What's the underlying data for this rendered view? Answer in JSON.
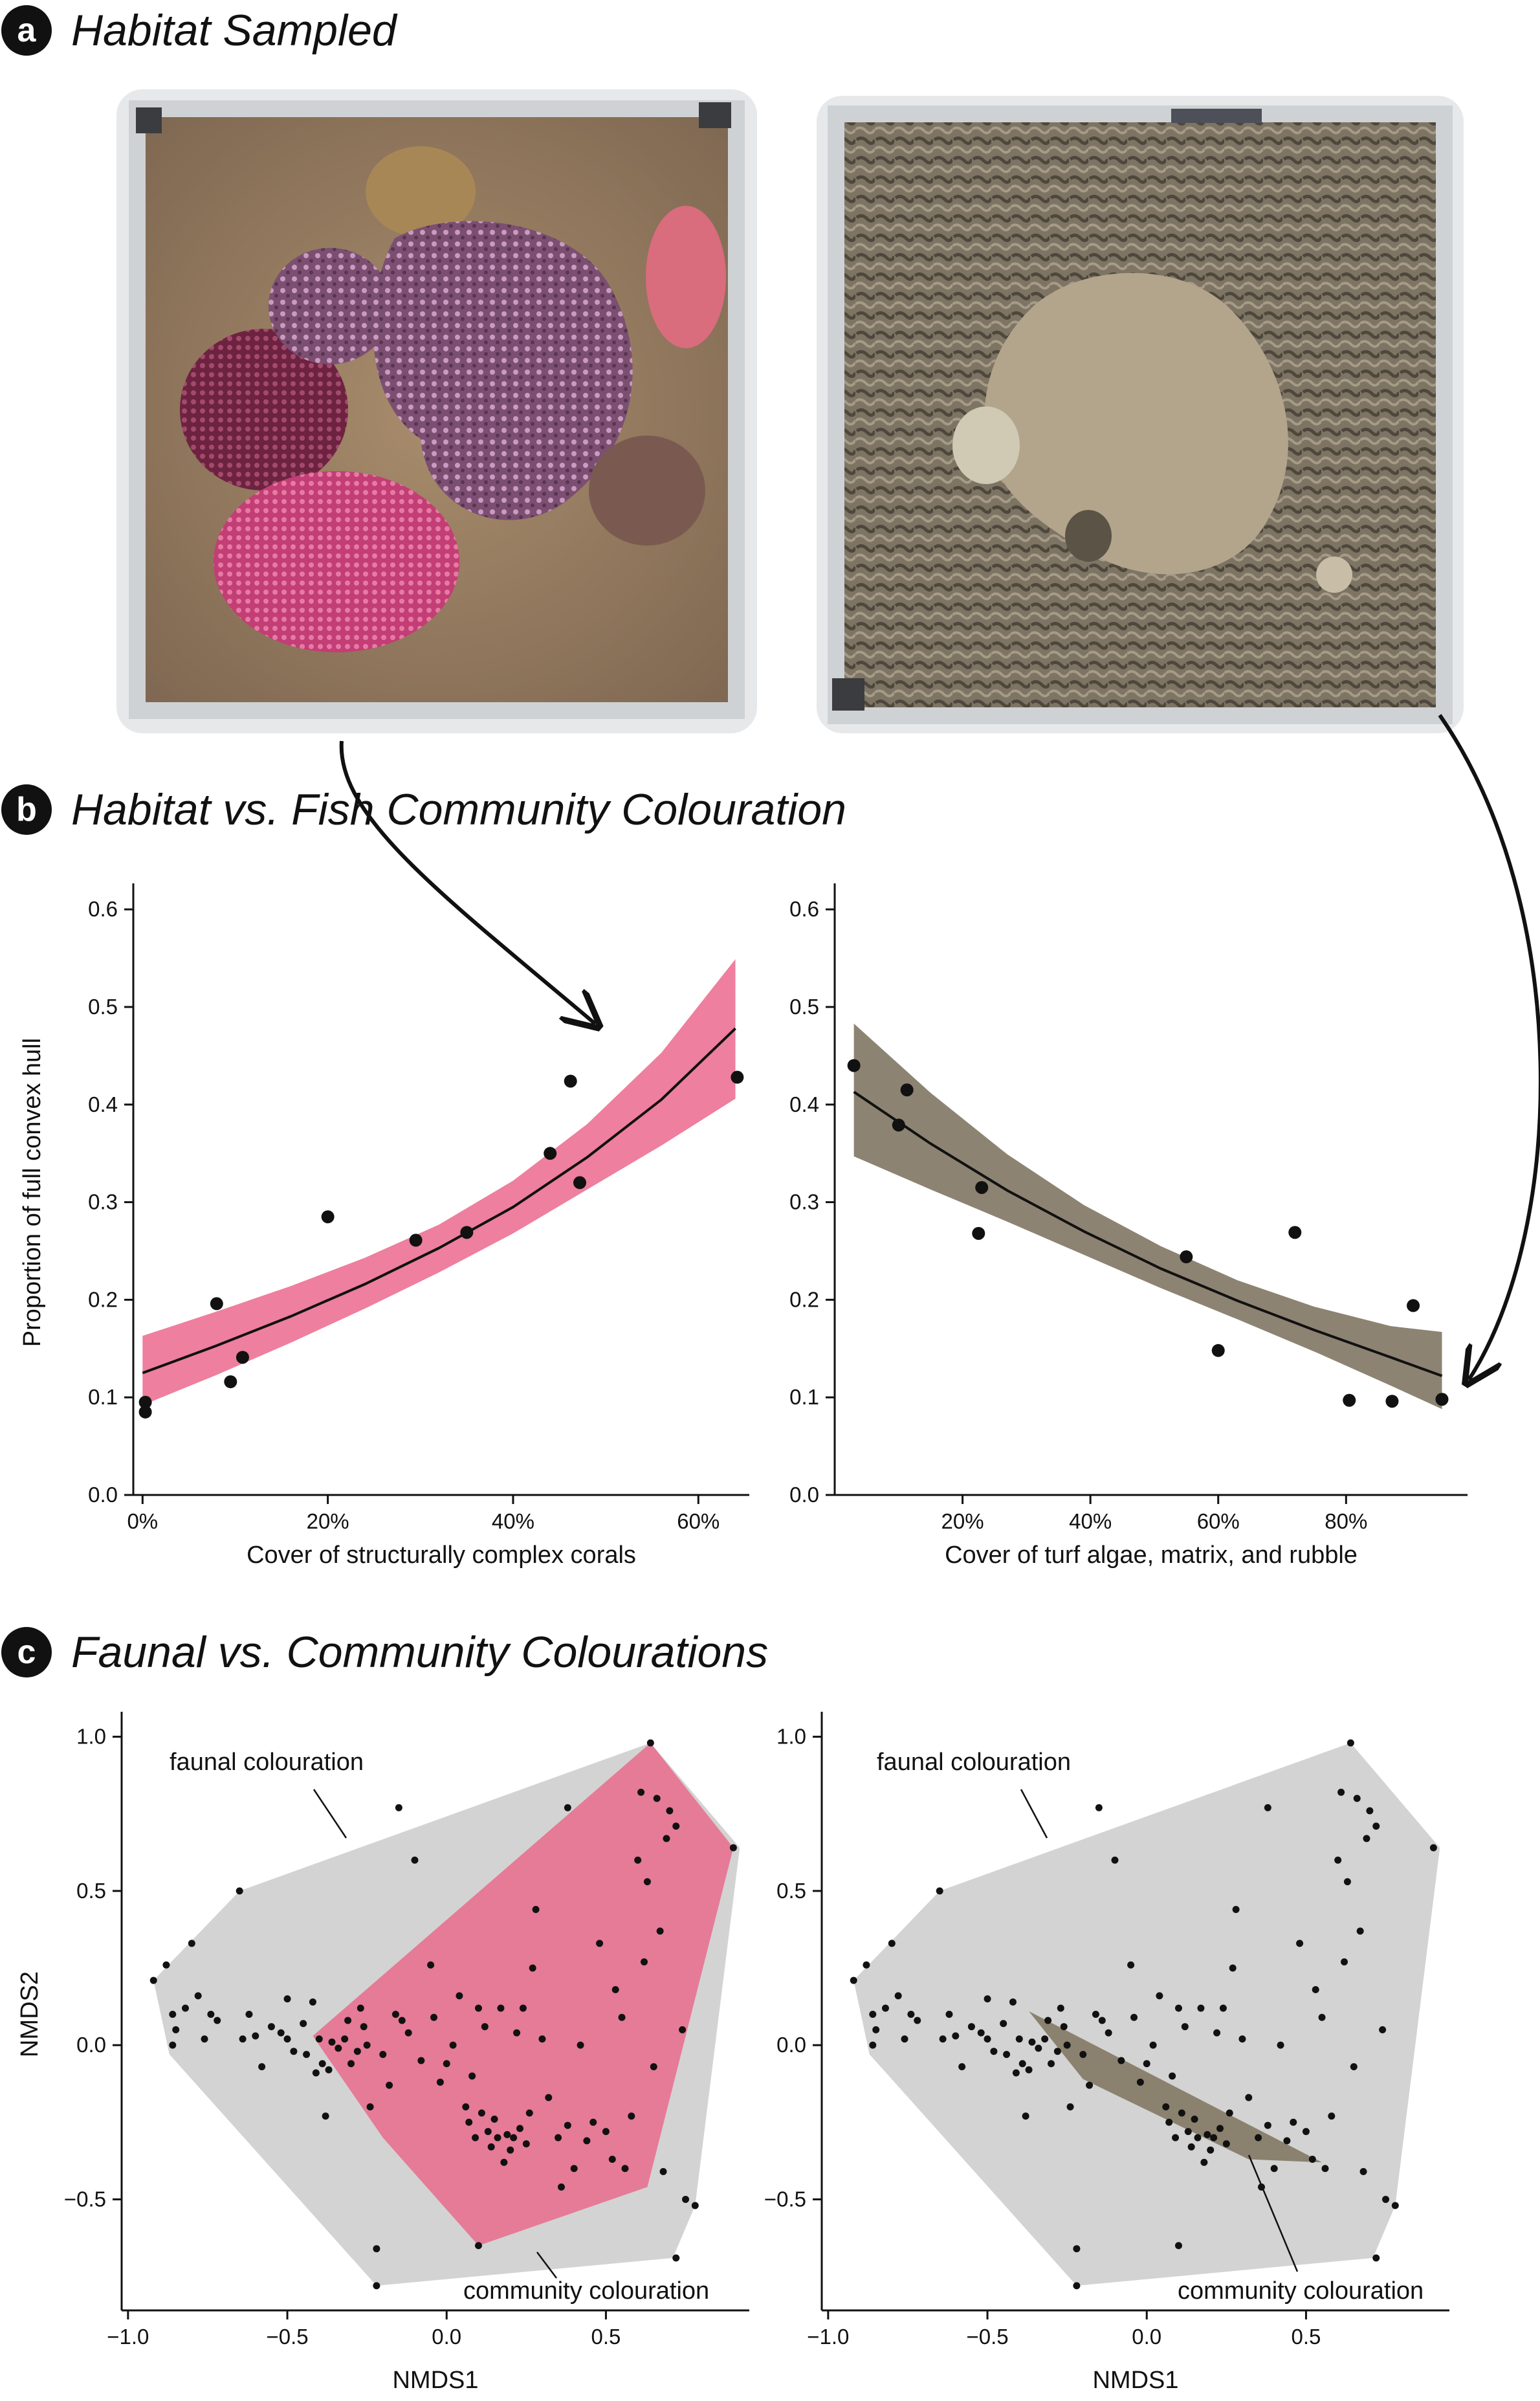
{
  "panels": {
    "a": {
      "letter": "a",
      "title": "Habitat Sampled"
    },
    "b": {
      "letter": "b",
      "title": "Habitat vs. Fish Community Colouration"
    },
    "c": {
      "letter": "c",
      "title": "Faunal vs. Community Colourations"
    }
  },
  "photos": [
    {
      "description_icon": "coral-quadrat-photo"
    },
    {
      "description_icon": "turf-algae-quadrat-photo"
    }
  ],
  "colors": {
    "coral_pink": "#e86a8f",
    "coral_pink_band": "#ee7f9e",
    "turf_brown": "#8a7f6c",
    "turf_band": "#8d8372",
    "hull_grey": "#d3d3d3"
  },
  "chart_data": [
    {
      "type": "scatter",
      "ylabel": "Proportion of full convex hull",
      "xlabel": "Cover of structurally complex corals",
      "xlim": [
        -0.01,
        0.655
      ],
      "ylim": [
        0,
        0.62
      ],
      "xticks": [
        0,
        0.2,
        0.4,
        0.6
      ],
      "xtick_labels": [
        "0%",
        "20%",
        "40%",
        "60%"
      ],
      "yticks": [
        0.0,
        0.1,
        0.2,
        0.3,
        0.4,
        0.5,
        0.6
      ],
      "ytick_labels": [
        "0.0",
        "0.1",
        "0.2",
        "0.3",
        "0.4",
        "0.5",
        "0.6"
      ],
      "points": [
        [
          0.003,
          0.095
        ],
        [
          0.003,
          0.085
        ],
        [
          0.08,
          0.196
        ],
        [
          0.095,
          0.116
        ],
        [
          0.108,
          0.141
        ],
        [
          0.2,
          0.285
        ],
        [
          0.295,
          0.261
        ],
        [
          0.35,
          0.269
        ],
        [
          0.44,
          0.35
        ],
        [
          0.462,
          0.424
        ],
        [
          0.472,
          0.32
        ],
        [
          0.642,
          0.428
        ]
      ],
      "fit": {
        "x": [
          0.0,
          0.08,
          0.16,
          0.24,
          0.32,
          0.4,
          0.48,
          0.56,
          0.64
        ],
        "y": [
          0.125,
          0.153,
          0.183,
          0.216,
          0.253,
          0.295,
          0.346,
          0.405,
          0.478
        ],
        "lower": [
          0.092,
          0.123,
          0.156,
          0.191,
          0.228,
          0.268,
          0.313,
          0.358,
          0.406
        ],
        "upper": [
          0.163,
          0.188,
          0.214,
          0.243,
          0.277,
          0.322,
          0.38,
          0.453,
          0.549
        ]
      },
      "band_color": "#ee7f9e"
    },
    {
      "type": "scatter",
      "xlabel": "Cover of turf algae, matrix, and rubble",
      "xlim": [
        0.0,
        0.99
      ],
      "ylim": [
        0,
        0.62
      ],
      "xticks": [
        0.2,
        0.4,
        0.6,
        0.8
      ],
      "xtick_labels": [
        "20%",
        "40%",
        "60%",
        "80%"
      ],
      "yticks": [
        0.0,
        0.1,
        0.2,
        0.3,
        0.4,
        0.5,
        0.6
      ],
      "ytick_labels": [
        "0.0",
        "0.1",
        "0.2",
        "0.3",
        "0.4",
        "0.5",
        "0.6"
      ],
      "points": [
        [
          0.03,
          0.44
        ],
        [
          0.1,
          0.379
        ],
        [
          0.113,
          0.415
        ],
        [
          0.225,
          0.268
        ],
        [
          0.23,
          0.315
        ],
        [
          0.55,
          0.244
        ],
        [
          0.6,
          0.148
        ],
        [
          0.72,
          0.269
        ],
        [
          0.805,
          0.097
        ],
        [
          0.872,
          0.096
        ],
        [
          0.905,
          0.194
        ],
        [
          0.95,
          0.098
        ]
      ],
      "fit": {
        "x": [
          0.03,
          0.15,
          0.27,
          0.39,
          0.51,
          0.63,
          0.75,
          0.87,
          0.95
        ],
        "y": [
          0.413,
          0.36,
          0.312,
          0.27,
          0.232,
          0.199,
          0.169,
          0.141,
          0.122
        ],
        "lower": [
          0.347,
          0.313,
          0.28,
          0.246,
          0.212,
          0.18,
          0.147,
          0.112,
          0.088
        ],
        "upper": [
          0.483,
          0.412,
          0.349,
          0.297,
          0.255,
          0.22,
          0.193,
          0.173,
          0.167
        ]
      },
      "band_color": "#8d8372"
    },
    {
      "type": "scatter",
      "ylabel": "NMDS2",
      "xlabel": "NMDS1",
      "xlim": [
        -1.02,
        0.95
      ],
      "ylim": [
        -0.86,
        1.06
      ],
      "xticks": [
        -1.0,
        -0.5,
        0.0,
        0.5
      ],
      "xtick_labels": [
        "−1.0",
        "−0.5",
        "0.0",
        "0.5"
      ],
      "yticks": [
        -0.5,
        0.0,
        0.5,
        1.0
      ],
      "ytick_labels": [
        "−0.5",
        "0.0",
        "0.5",
        "1.0"
      ],
      "faunal_hull": [
        [
          -0.92,
          0.21
        ],
        [
          -0.65,
          0.5
        ],
        [
          0.64,
          0.98
        ],
        [
          0.92,
          0.64
        ],
        [
          0.78,
          -0.52
        ],
        [
          0.71,
          -0.69
        ],
        [
          -0.22,
          -0.78
        ],
        [
          -0.87,
          -0.03
        ]
      ],
      "community_hull": [
        [
          -0.42,
          0.03
        ],
        [
          0.64,
          0.98
        ],
        [
          0.9,
          0.64
        ],
        [
          0.63,
          -0.46
        ],
        [
          0.1,
          -0.65
        ],
        [
          -0.2,
          -0.3
        ]
      ],
      "hull_color": "#e57b97",
      "annotations": [
        {
          "text": "faunal colouration"
        },
        {
          "text": "community colouration"
        }
      ],
      "points": [
        [
          -0.92,
          0.21
        ],
        [
          -0.88,
          0.26
        ],
        [
          -0.86,
          0.0
        ],
        [
          -0.86,
          0.1
        ],
        [
          -0.85,
          0.05
        ],
        [
          -0.82,
          0.12
        ],
        [
          -0.8,
          0.33
        ],
        [
          -0.78,
          0.16
        ],
        [
          -0.76,
          0.02
        ],
        [
          -0.74,
          0.1
        ],
        [
          -0.72,
          0.08
        ],
        [
          -0.65,
          0.5
        ],
        [
          -0.64,
          0.02
        ],
        [
          -0.62,
          0.1
        ],
        [
          -0.6,
          0.03
        ],
        [
          -0.58,
          -0.07
        ],
        [
          -0.55,
          0.06
        ],
        [
          -0.52,
          0.04
        ],
        [
          -0.5,
          0.15
        ],
        [
          -0.5,
          0.02
        ],
        [
          -0.48,
          -0.02
        ],
        [
          -0.45,
          0.07
        ],
        [
          -0.44,
          -0.03
        ],
        [
          -0.42,
          0.14
        ],
        [
          -0.41,
          -0.09
        ],
        [
          -0.4,
          0.02
        ],
        [
          -0.39,
          -0.06
        ],
        [
          -0.38,
          -0.23
        ],
        [
          -0.37,
          -0.08
        ],
        [
          -0.36,
          0.01
        ],
        [
          -0.34,
          -0.01
        ],
        [
          -0.32,
          0.02
        ],
        [
          -0.31,
          0.08
        ],
        [
          -0.3,
          -0.06
        ],
        [
          -0.28,
          -0.02
        ],
        [
          -0.27,
          0.12
        ],
        [
          -0.26,
          0.06
        ],
        [
          -0.25,
          0.0
        ],
        [
          -0.24,
          -0.2
        ],
        [
          -0.22,
          -0.66
        ],
        [
          -0.22,
          -0.78
        ],
        [
          -0.2,
          -0.03
        ],
        [
          -0.18,
          -0.13
        ],
        [
          -0.16,
          0.1
        ],
        [
          -0.15,
          0.77
        ],
        [
          -0.14,
          0.08
        ],
        [
          -0.12,
          0.04
        ],
        [
          -0.1,
          0.6
        ],
        [
          -0.08,
          -0.05
        ],
        [
          -0.05,
          0.26
        ],
        [
          -0.04,
          0.09
        ],
        [
          -0.02,
          -0.12
        ],
        [
          0.0,
          -0.06
        ],
        [
          0.02,
          0.0
        ],
        [
          0.04,
          0.16
        ],
        [
          0.06,
          -0.2
        ],
        [
          0.07,
          -0.25
        ],
        [
          0.08,
          -0.1
        ],
        [
          0.09,
          -0.3
        ],
        [
          0.1,
          0.12
        ],
        [
          0.1,
          -0.65
        ],
        [
          0.11,
          -0.22
        ],
        [
          0.12,
          0.06
        ],
        [
          0.13,
          -0.28
        ],
        [
          0.14,
          -0.33
        ],
        [
          0.15,
          -0.24
        ],
        [
          0.16,
          -0.3
        ],
        [
          0.17,
          0.12
        ],
        [
          0.18,
          -0.38
        ],
        [
          0.19,
          -0.29
        ],
        [
          0.2,
          -0.34
        ],
        [
          0.21,
          -0.3
        ],
        [
          0.22,
          0.04
        ],
        [
          0.23,
          -0.27
        ],
        [
          0.24,
          0.12
        ],
        [
          0.25,
          -0.32
        ],
        [
          0.26,
          -0.22
        ],
        [
          0.27,
          0.25
        ],
        [
          0.28,
          0.44
        ],
        [
          0.3,
          0.02
        ],
        [
          0.32,
          -0.17
        ],
        [
          0.35,
          -0.3
        ],
        [
          0.36,
          -0.46
        ],
        [
          0.38,
          -0.26
        ],
        [
          0.38,
          0.77
        ],
        [
          0.4,
          -0.4
        ],
        [
          0.42,
          0.0
        ],
        [
          0.44,
          -0.31
        ],
        [
          0.46,
          -0.25
        ],
        [
          0.48,
          0.33
        ],
        [
          0.5,
          -0.28
        ],
        [
          0.52,
          -0.37
        ],
        [
          0.53,
          0.18
        ],
        [
          0.55,
          0.09
        ],
        [
          0.56,
          -0.4
        ],
        [
          0.58,
          -0.23
        ],
        [
          0.6,
          0.6
        ],
        [
          0.61,
          0.82
        ],
        [
          0.62,
          0.27
        ],
        [
          0.63,
          0.53
        ],
        [
          0.64,
          0.98
        ],
        [
          0.65,
          -0.07
        ],
        [
          0.66,
          0.8
        ],
        [
          0.67,
          0.37
        ],
        [
          0.68,
          -0.41
        ],
        [
          0.69,
          0.67
        ],
        [
          0.7,
          0.76
        ],
        [
          0.72,
          0.71
        ],
        [
          0.74,
          0.05
        ],
        [
          0.75,
          -0.5
        ],
        [
          0.78,
          -0.52
        ],
        [
          0.72,
          -0.69
        ],
        [
          0.9,
          0.64
        ]
      ]
    },
    {
      "type": "scatter",
      "xlabel": "NMDS1",
      "xlim": [
        -1.02,
        0.95
      ],
      "ylim": [
        -0.86,
        1.06
      ],
      "xticks": [
        -1.0,
        -0.5,
        0.0,
        0.5
      ],
      "xtick_labels": [
        "−1.0",
        "−0.5",
        "0.0",
        "0.5"
      ],
      "yticks": [
        -0.5,
        0.0,
        0.5,
        1.0
      ],
      "ytick_labels": [
        "−0.5",
        "0.0",
        "0.5",
        "1.0"
      ],
      "faunal_hull": [
        [
          -0.92,
          0.21
        ],
        [
          -0.65,
          0.5
        ],
        [
          0.64,
          0.98
        ],
        [
          0.92,
          0.64
        ],
        [
          0.78,
          -0.52
        ],
        [
          0.71,
          -0.69
        ],
        [
          -0.22,
          -0.78
        ],
        [
          -0.87,
          -0.03
        ]
      ],
      "community_hull": [
        [
          -0.37,
          0.11
        ],
        [
          0.55,
          -0.38
        ],
        [
          0.32,
          -0.37
        ],
        [
          -0.2,
          -0.11
        ]
      ],
      "hull_color": "#8b816f",
      "annotations": [
        {
          "text": "faunal colouration"
        },
        {
          "text": "community colouration"
        }
      ],
      "points": [
        [
          -0.92,
          0.21
        ],
        [
          -0.88,
          0.26
        ],
        [
          -0.86,
          0.0
        ],
        [
          -0.86,
          0.1
        ],
        [
          -0.85,
          0.05
        ],
        [
          -0.82,
          0.12
        ],
        [
          -0.8,
          0.33
        ],
        [
          -0.78,
          0.16
        ],
        [
          -0.76,
          0.02
        ],
        [
          -0.74,
          0.1
        ],
        [
          -0.72,
          0.08
        ],
        [
          -0.65,
          0.5
        ],
        [
          -0.64,
          0.02
        ],
        [
          -0.62,
          0.1
        ],
        [
          -0.6,
          0.03
        ],
        [
          -0.58,
          -0.07
        ],
        [
          -0.55,
          0.06
        ],
        [
          -0.52,
          0.04
        ],
        [
          -0.5,
          0.15
        ],
        [
          -0.5,
          0.02
        ],
        [
          -0.48,
          -0.02
        ],
        [
          -0.45,
          0.07
        ],
        [
          -0.44,
          -0.03
        ],
        [
          -0.42,
          0.14
        ],
        [
          -0.41,
          -0.09
        ],
        [
          -0.4,
          0.02
        ],
        [
          -0.39,
          -0.06
        ],
        [
          -0.38,
          -0.23
        ],
        [
          -0.37,
          -0.08
        ],
        [
          -0.36,
          0.01
        ],
        [
          -0.34,
          -0.01
        ],
        [
          -0.32,
          0.02
        ],
        [
          -0.31,
          0.08
        ],
        [
          -0.3,
          -0.06
        ],
        [
          -0.28,
          -0.02
        ],
        [
          -0.27,
          0.12
        ],
        [
          -0.26,
          0.06
        ],
        [
          -0.25,
          0.0
        ],
        [
          -0.24,
          -0.2
        ],
        [
          -0.22,
          -0.66
        ],
        [
          -0.22,
          -0.78
        ],
        [
          -0.2,
          -0.03
        ],
        [
          -0.18,
          -0.13
        ],
        [
          -0.16,
          0.1
        ],
        [
          -0.15,
          0.77
        ],
        [
          -0.14,
          0.08
        ],
        [
          -0.12,
          0.04
        ],
        [
          -0.1,
          0.6
        ],
        [
          -0.08,
          -0.05
        ],
        [
          -0.05,
          0.26
        ],
        [
          -0.04,
          0.09
        ],
        [
          -0.02,
          -0.12
        ],
        [
          0.0,
          -0.06
        ],
        [
          0.02,
          0.0
        ],
        [
          0.04,
          0.16
        ],
        [
          0.06,
          -0.2
        ],
        [
          0.07,
          -0.25
        ],
        [
          0.08,
          -0.1
        ],
        [
          0.09,
          -0.3
        ],
        [
          0.1,
          0.12
        ],
        [
          0.1,
          -0.65
        ],
        [
          0.11,
          -0.22
        ],
        [
          0.12,
          0.06
        ],
        [
          0.13,
          -0.28
        ],
        [
          0.14,
          -0.33
        ],
        [
          0.15,
          -0.24
        ],
        [
          0.16,
          -0.3
        ],
        [
          0.17,
          0.12
        ],
        [
          0.18,
          -0.38
        ],
        [
          0.19,
          -0.29
        ],
        [
          0.2,
          -0.34
        ],
        [
          0.21,
          -0.3
        ],
        [
          0.22,
          0.04
        ],
        [
          0.23,
          -0.27
        ],
        [
          0.24,
          0.12
        ],
        [
          0.25,
          -0.32
        ],
        [
          0.26,
          -0.22
        ],
        [
          0.27,
          0.25
        ],
        [
          0.28,
          0.44
        ],
        [
          0.3,
          0.02
        ],
        [
          0.32,
          -0.17
        ],
        [
          0.35,
          -0.3
        ],
        [
          0.36,
          -0.46
        ],
        [
          0.38,
          -0.26
        ],
        [
          0.38,
          0.77
        ],
        [
          0.4,
          -0.4
        ],
        [
          0.42,
          0.0
        ],
        [
          0.44,
          -0.31
        ],
        [
          0.46,
          -0.25
        ],
        [
          0.48,
          0.33
        ],
        [
          0.5,
          -0.28
        ],
        [
          0.52,
          -0.37
        ],
        [
          0.53,
          0.18
        ],
        [
          0.55,
          0.09
        ],
        [
          0.56,
          -0.4
        ],
        [
          0.58,
          -0.23
        ],
        [
          0.6,
          0.6
        ],
        [
          0.61,
          0.82
        ],
        [
          0.62,
          0.27
        ],
        [
          0.63,
          0.53
        ],
        [
          0.64,
          0.98
        ],
        [
          0.65,
          -0.07
        ],
        [
          0.66,
          0.8
        ],
        [
          0.67,
          0.37
        ],
        [
          0.68,
          -0.41
        ],
        [
          0.69,
          0.67
        ],
        [
          0.7,
          0.76
        ],
        [
          0.72,
          0.71
        ],
        [
          0.74,
          0.05
        ],
        [
          0.75,
          -0.5
        ],
        [
          0.78,
          -0.52
        ],
        [
          0.72,
          -0.69
        ],
        [
          0.9,
          0.64
        ]
      ]
    }
  ]
}
